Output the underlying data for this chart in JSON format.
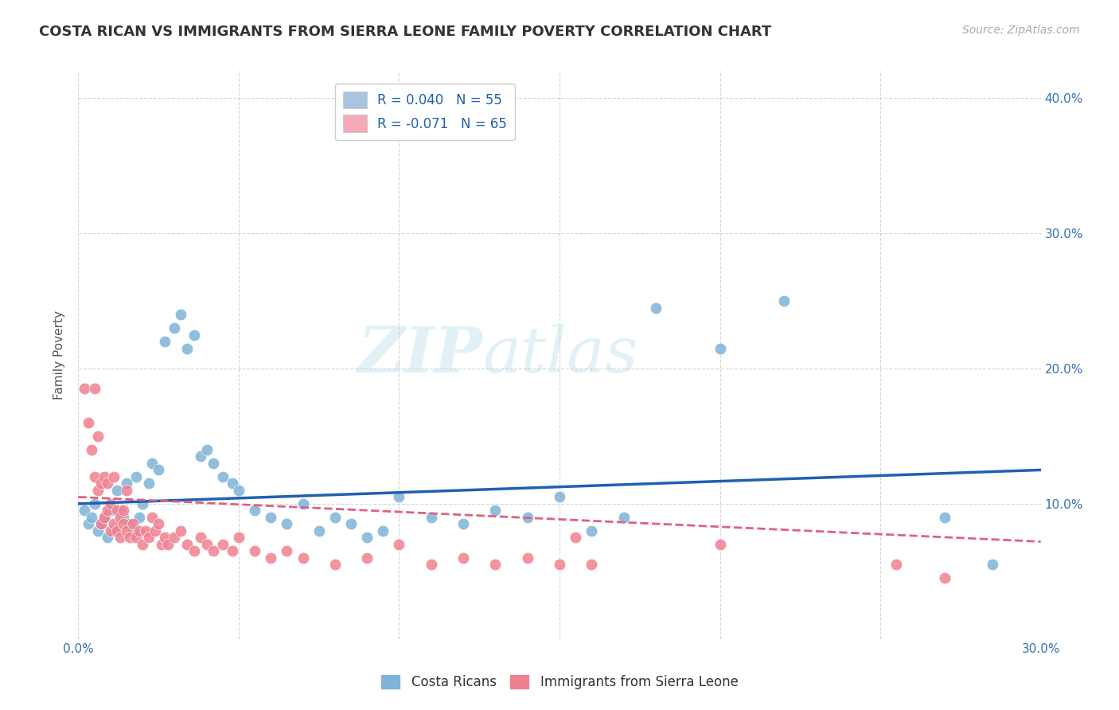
{
  "title": "COSTA RICAN VS IMMIGRANTS FROM SIERRA LEONE FAMILY POVERTY CORRELATION CHART",
  "source": "Source: ZipAtlas.com",
  "ylabel": "Family Poverty",
  "x_min": 0.0,
  "x_max": 0.3,
  "y_min": 0.0,
  "y_max": 0.42,
  "x_ticks": [
    0.0,
    0.05,
    0.1,
    0.15,
    0.2,
    0.25,
    0.3
  ],
  "x_tick_labels": [
    "0.0%",
    "",
    "",
    "",
    "",
    "",
    "30.0%"
  ],
  "y_ticks": [
    0.0,
    0.1,
    0.2,
    0.3,
    0.4
  ],
  "y_tick_labels": [
    "",
    "10.0%",
    "20.0%",
    "30.0%",
    "40.0%"
  ],
  "legend_entries": [
    {
      "label": "R = 0.040   N = 55",
      "color": "#aac4e0"
    },
    {
      "label": "R = -0.071   N = 65",
      "color": "#f4a8b8"
    }
  ],
  "costa_ricans_color": "#7fb3d8",
  "sierra_leone_color": "#f08090",
  "trend_cr_color": "#2060b0",
  "trend_sl_color": "#e06080",
  "background_color": "#ffffff",
  "grid_color": "#cccccc",
  "watermark": "ZIPatlas",
  "costa_ricans_x": [
    0.002,
    0.003,
    0.004,
    0.005,
    0.006,
    0.007,
    0.008,
    0.009,
    0.01,
    0.011,
    0.012,
    0.013,
    0.014,
    0.015,
    0.016,
    0.017,
    0.018,
    0.019,
    0.02,
    0.022,
    0.023,
    0.025,
    0.027,
    0.03,
    0.032,
    0.034,
    0.036,
    0.038,
    0.04,
    0.042,
    0.045,
    0.048,
    0.05,
    0.055,
    0.06,
    0.065,
    0.07,
    0.075,
    0.08,
    0.085,
    0.09,
    0.095,
    0.1,
    0.11,
    0.12,
    0.13,
    0.14,
    0.15,
    0.16,
    0.17,
    0.18,
    0.2,
    0.22,
    0.27,
    0.285
  ],
  "costa_ricans_y": [
    0.095,
    0.085,
    0.09,
    0.1,
    0.08,
    0.085,
    0.09,
    0.075,
    0.095,
    0.08,
    0.11,
    0.095,
    0.09,
    0.115,
    0.085,
    0.08,
    0.12,
    0.09,
    0.1,
    0.115,
    0.13,
    0.125,
    0.22,
    0.23,
    0.24,
    0.215,
    0.225,
    0.135,
    0.14,
    0.13,
    0.12,
    0.115,
    0.11,
    0.095,
    0.09,
    0.085,
    0.1,
    0.08,
    0.09,
    0.085,
    0.075,
    0.08,
    0.105,
    0.09,
    0.085,
    0.095,
    0.09,
    0.105,
    0.08,
    0.09,
    0.245,
    0.215,
    0.25,
    0.09,
    0.055
  ],
  "sierra_leone_x": [
    0.002,
    0.003,
    0.004,
    0.005,
    0.005,
    0.006,
    0.006,
    0.007,
    0.007,
    0.008,
    0.008,
    0.009,
    0.009,
    0.01,
    0.01,
    0.011,
    0.011,
    0.012,
    0.012,
    0.013,
    0.013,
    0.014,
    0.014,
    0.015,
    0.015,
    0.016,
    0.017,
    0.018,
    0.019,
    0.02,
    0.021,
    0.022,
    0.023,
    0.024,
    0.025,
    0.026,
    0.027,
    0.028,
    0.03,
    0.032,
    0.034,
    0.036,
    0.038,
    0.04,
    0.042,
    0.045,
    0.048,
    0.05,
    0.055,
    0.06,
    0.065,
    0.07,
    0.08,
    0.09,
    0.1,
    0.11,
    0.12,
    0.13,
    0.14,
    0.15,
    0.155,
    0.16,
    0.2,
    0.255,
    0.27
  ],
  "sierra_leone_y": [
    0.185,
    0.16,
    0.14,
    0.12,
    0.185,
    0.11,
    0.15,
    0.085,
    0.115,
    0.09,
    0.12,
    0.095,
    0.115,
    0.08,
    0.1,
    0.085,
    0.12,
    0.08,
    0.095,
    0.075,
    0.09,
    0.085,
    0.095,
    0.08,
    0.11,
    0.075,
    0.085,
    0.075,
    0.08,
    0.07,
    0.08,
    0.075,
    0.09,
    0.08,
    0.085,
    0.07,
    0.075,
    0.07,
    0.075,
    0.08,
    0.07,
    0.065,
    0.075,
    0.07,
    0.065,
    0.07,
    0.065,
    0.075,
    0.065,
    0.06,
    0.065,
    0.06,
    0.055,
    0.06,
    0.07,
    0.055,
    0.06,
    0.055,
    0.06,
    0.055,
    0.075,
    0.055,
    0.07,
    0.055,
    0.045
  ]
}
